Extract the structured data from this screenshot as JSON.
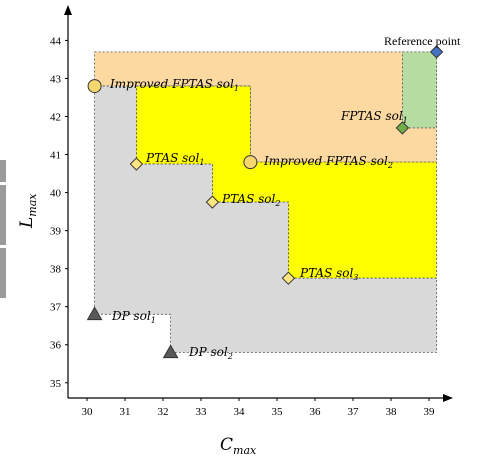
{
  "chart_data": {
    "type": "scatter",
    "xlabel": {
      "main": "C",
      "sub": "max"
    },
    "ylabel": {
      "main": "L",
      "sub": "max"
    },
    "xlim": [
      29.5,
      39.5
    ],
    "ylim": [
      34.6,
      44.8
    ],
    "x_ticks": [
      "30",
      "31",
      "32",
      "33",
      "34",
      "35",
      "36",
      "37",
      "38",
      "39"
    ],
    "y_ticks": [
      "35",
      "36",
      "37",
      "38",
      "39",
      "40",
      "41",
      "42",
      "43",
      "44"
    ],
    "reference_point": {
      "label": "Reference point",
      "x": 39.2,
      "y": 43.7,
      "color": "#4472c4"
    },
    "points": [
      {
        "id": "improved-fptas-1",
        "main": "Improved FPTAS sol",
        "sub": "1",
        "x": 30.2,
        "y": 42.8,
        "marker": "circle",
        "color": "#f5d76e"
      },
      {
        "id": "improved-fptas-2",
        "main": "Improved FPTAS sol",
        "sub": "2",
        "x": 34.3,
        "y": 40.8,
        "marker": "circle",
        "color": "#f5d76e"
      },
      {
        "id": "fptas-1",
        "main": "FPTAS sol",
        "sub": "1",
        "x": 38.3,
        "y": 41.7,
        "marker": "diamond",
        "color": "#70ad47"
      },
      {
        "id": "ptas-1",
        "main": "PTAS sol",
        "sub": "1",
        "x": 31.3,
        "y": 40.75,
        "marker": "diamond",
        "color": "#ffe680"
      },
      {
        "id": "ptas-2",
        "main": "PTAS sol",
        "sub": "2",
        "x": 33.3,
        "y": 39.75,
        "marker": "diamond",
        "color": "#ffe680"
      },
      {
        "id": "ptas-3",
        "main": "PTAS sol",
        "sub": "3",
        "x": 35.3,
        "y": 37.75,
        "marker": "diamond",
        "color": "#ffe680"
      },
      {
        "id": "dp-1",
        "main": "DP sol",
        "sub": "1",
        "x": 30.2,
        "y": 36.8,
        "marker": "triangle",
        "color": "#595959"
      },
      {
        "id": "dp-2",
        "main": "DP sol",
        "sub": "2",
        "x": 32.2,
        "y": 35.8,
        "marker": "triangle",
        "color": "#595959"
      }
    ],
    "regions": [
      {
        "name": "orange",
        "color": "#fbd9a0",
        "points": [
          [
            30.2,
            43.7
          ],
          [
            39.2,
            43.7
          ],
          [
            39.2,
            40.8
          ],
          [
            34.3,
            40.8
          ],
          [
            34.3,
            42.8
          ],
          [
            30.2,
            42.8
          ]
        ]
      },
      {
        "name": "green",
        "color": "#b7dca2",
        "points": [
          [
            38.3,
            43.7
          ],
          [
            39.2,
            43.7
          ],
          [
            39.2,
            41.7
          ],
          [
            38.3,
            41.7
          ]
        ]
      },
      {
        "name": "yellow",
        "color": "#ffff00",
        "points": [
          [
            31.3,
            42.8
          ],
          [
            34.3,
            42.8
          ],
          [
            34.3,
            40.8
          ],
          [
            39.2,
            40.8
          ],
          [
            39.2,
            37.75
          ],
          [
            35.3,
            37.75
          ],
          [
            35.3,
            39.75
          ],
          [
            33.3,
            39.75
          ],
          [
            33.3,
            40.75
          ],
          [
            31.3,
            40.75
          ]
        ]
      },
      {
        "name": "gray",
        "color": "#d9d9d9",
        "points": [
          [
            30.2,
            42.8
          ],
          [
            31.3,
            42.8
          ],
          [
            31.3,
            40.75
          ],
          [
            33.3,
            40.75
          ],
          [
            33.3,
            39.75
          ],
          [
            35.3,
            39.75
          ],
          [
            35.3,
            37.75
          ],
          [
            39.2,
            37.75
          ],
          [
            39.2,
            35.8
          ],
          [
            32.2,
            35.8
          ],
          [
            32.2,
            36.8
          ],
          [
            30.2,
            36.8
          ]
        ]
      }
    ],
    "grid": false,
    "legend": "none"
  }
}
